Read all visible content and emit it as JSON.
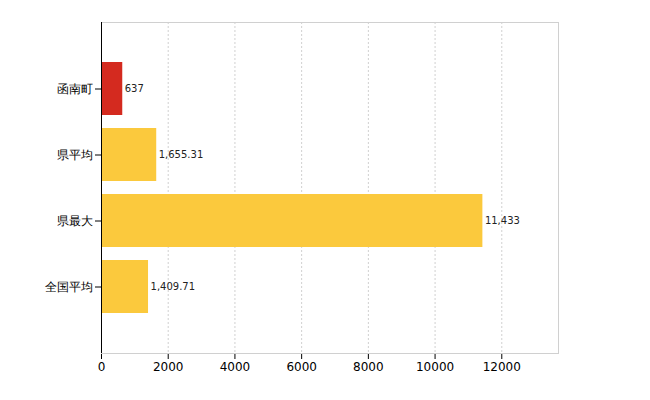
{
  "chart_data": {
    "type": "bar",
    "orientation": "horizontal",
    "categories": [
      "函南町",
      "県平均",
      "県最大",
      "全国平均"
    ],
    "values": [
      637,
      1655.31,
      11433,
      1409.71
    ],
    "value_labels": [
      "637",
      "1,655.31",
      "11,433",
      "1,409.71"
    ],
    "colors": [
      "#d42a1f",
      "#fbc93d",
      "#fbc93d",
      "#fbc93d"
    ],
    "xlim": [
      0,
      13700
    ],
    "xticks": [
      0,
      2000,
      4000,
      6000,
      8000,
      10000,
      12000
    ],
    "grid": true,
    "data_labels": true
  }
}
